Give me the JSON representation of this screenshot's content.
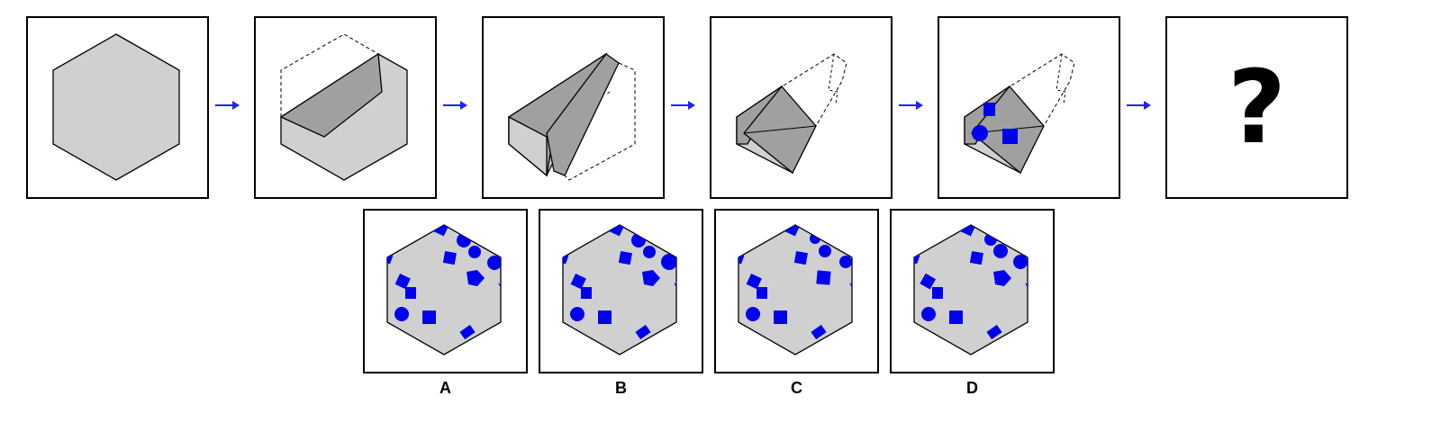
{
  "colors": {
    "paper": "#d0d0d0",
    "fold": "#a0a0a0",
    "shape": "#0000ee",
    "arrow": "#2020ff",
    "outline": "#000000"
  },
  "sequence": [
    {
      "name": "step-1-flat-hexagon"
    },
    {
      "name": "step-2-first-fold"
    },
    {
      "name": "step-3-second-fold"
    },
    {
      "name": "step-4-third-fold"
    },
    {
      "name": "step-5-punched"
    },
    {
      "name": "step-6-unknown",
      "symbol": "?"
    }
  ],
  "options": [
    {
      "label": "A"
    },
    {
      "label": "B"
    },
    {
      "label": "C"
    },
    {
      "label": "D"
    }
  ]
}
